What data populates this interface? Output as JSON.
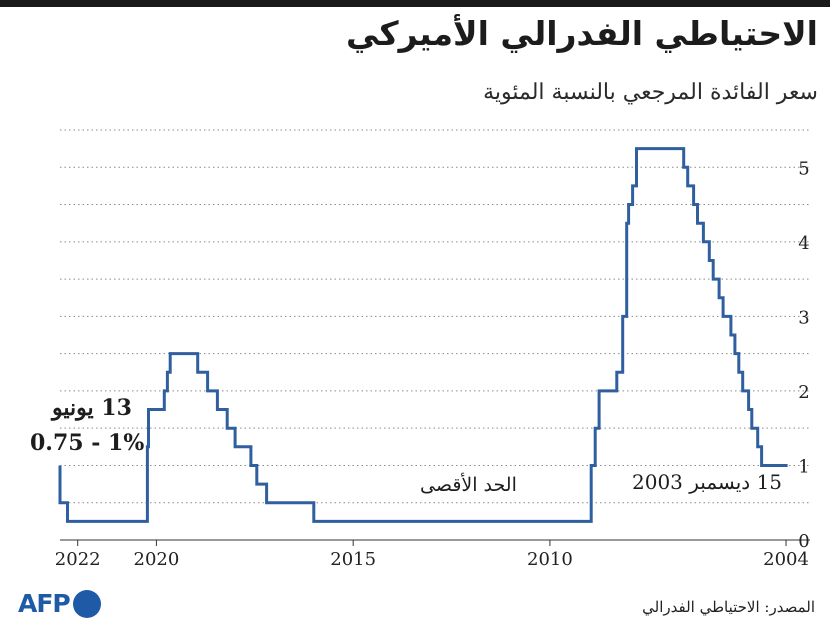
{
  "title": "الاحتياطي الفدرالي الأميركي",
  "subtitle": "سعر الفائدة المرجعي بالنسبة المئوية",
  "annotations": {
    "june_date": "13 يونيو",
    "june_rate": "0.75 - 1%",
    "max_label": "الحد الأقصى",
    "dec_date": "15 ديسمبر 2003"
  },
  "source": "المصدر: الاحتياطي الفدرالي",
  "logo": {
    "text": "AFP",
    "color": "#1f5aa6"
  },
  "colors": {
    "line": "#2f5f9e",
    "grid": "#8a8a8a",
    "text": "#222222",
    "top_bar": "#1a1a1a"
  },
  "chart_data": {
    "type": "line",
    "step": true,
    "x_axis_direction": "right-to-left",
    "xlim": [
      2003.95,
      2022.45
    ],
    "ylim": [
      0,
      5.5
    ],
    "grid": "horizontal-dotted",
    "y_ticks": [
      0,
      1,
      2,
      3,
      4,
      5
    ],
    "x_ticks": [
      {
        "value": 2022,
        "label": "2022"
      },
      {
        "value": 2020,
        "label": "2020"
      },
      {
        "value": 2015,
        "label": "2015"
      },
      {
        "value": 2010,
        "label": "2010"
      },
      {
        "value": 2004,
        "label": "2004"
      }
    ],
    "series": [
      {
        "points": [
          [
            2003.96,
            1.0
          ],
          [
            2004.5,
            1.0
          ],
          [
            2004.62,
            1.25
          ],
          [
            2004.72,
            1.5
          ],
          [
            2004.87,
            1.75
          ],
          [
            2004.95,
            2.0
          ],
          [
            2005.1,
            2.25
          ],
          [
            2005.2,
            2.5
          ],
          [
            2005.3,
            2.75
          ],
          [
            2005.4,
            3.0
          ],
          [
            2005.6,
            3.25
          ],
          [
            2005.7,
            3.5
          ],
          [
            2005.85,
            3.75
          ],
          [
            2005.95,
            4.0
          ],
          [
            2006.1,
            4.25
          ],
          [
            2006.25,
            4.5
          ],
          [
            2006.35,
            4.75
          ],
          [
            2006.5,
            5.0
          ],
          [
            2006.6,
            5.25
          ],
          [
            2007.7,
            5.25
          ],
          [
            2007.8,
            4.75
          ],
          [
            2007.9,
            4.5
          ],
          [
            2008.0,
            4.25
          ],
          [
            2008.05,
            3.0
          ],
          [
            2008.15,
            2.25
          ],
          [
            2008.3,
            2.0
          ],
          [
            2008.75,
            1.5
          ],
          [
            2008.85,
            1.0
          ],
          [
            2008.95,
            0.25
          ],
          [
            2015.95,
            0.25
          ],
          [
            2016.0,
            0.5
          ],
          [
            2016.95,
            0.5
          ],
          [
            2017.2,
            0.75
          ],
          [
            2017.45,
            1.0
          ],
          [
            2017.6,
            1.25
          ],
          [
            2018.0,
            1.5
          ],
          [
            2018.2,
            1.75
          ],
          [
            2018.45,
            2.0
          ],
          [
            2018.7,
            2.25
          ],
          [
            2018.95,
            2.5
          ],
          [
            2019.55,
            2.5
          ],
          [
            2019.65,
            2.25
          ],
          [
            2019.72,
            2.0
          ],
          [
            2019.8,
            1.75
          ],
          [
            2020.15,
            1.75
          ],
          [
            2020.2,
            1.25
          ],
          [
            2020.23,
            0.25
          ],
          [
            2022.2,
            0.25
          ],
          [
            2022.26,
            0.5
          ],
          [
            2022.36,
            0.5
          ],
          [
            2022.45,
            1.0
          ]
        ]
      }
    ]
  }
}
